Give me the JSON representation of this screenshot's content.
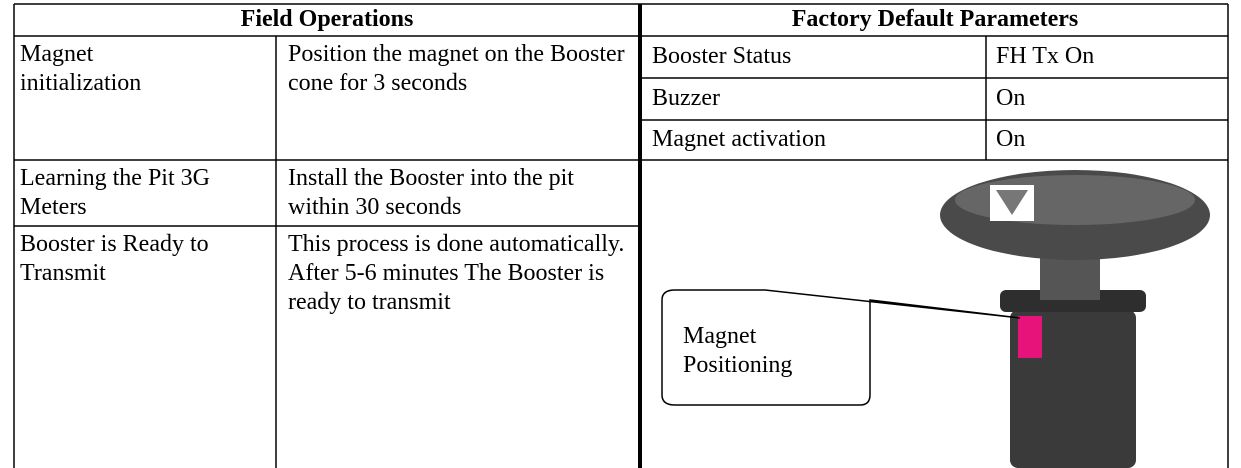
{
  "left_table": {
    "header": "Field Operations",
    "rows": [
      [
        "Magnet initialization",
        "Position the magnet on the Booster cone for 3 seconds"
      ],
      [
        "Learning the Pit 3G Meters",
        "Install the Booster into the pit within 30 seconds"
      ],
      [
        "Booster is Ready to Transmit",
        "This process is done automatically. After 5-6 minutes The Booster is ready to transmit"
      ]
    ]
  },
  "right_table": {
    "header": "Factory Default Parameters",
    "rows": [
      [
        "Booster Status",
        "FH Tx On"
      ],
      [
        "Buzzer",
        "On"
      ],
      [
        "Magnet activation",
        "On"
      ]
    ]
  },
  "image": {
    "callout": "Magnet Positioning"
  }
}
